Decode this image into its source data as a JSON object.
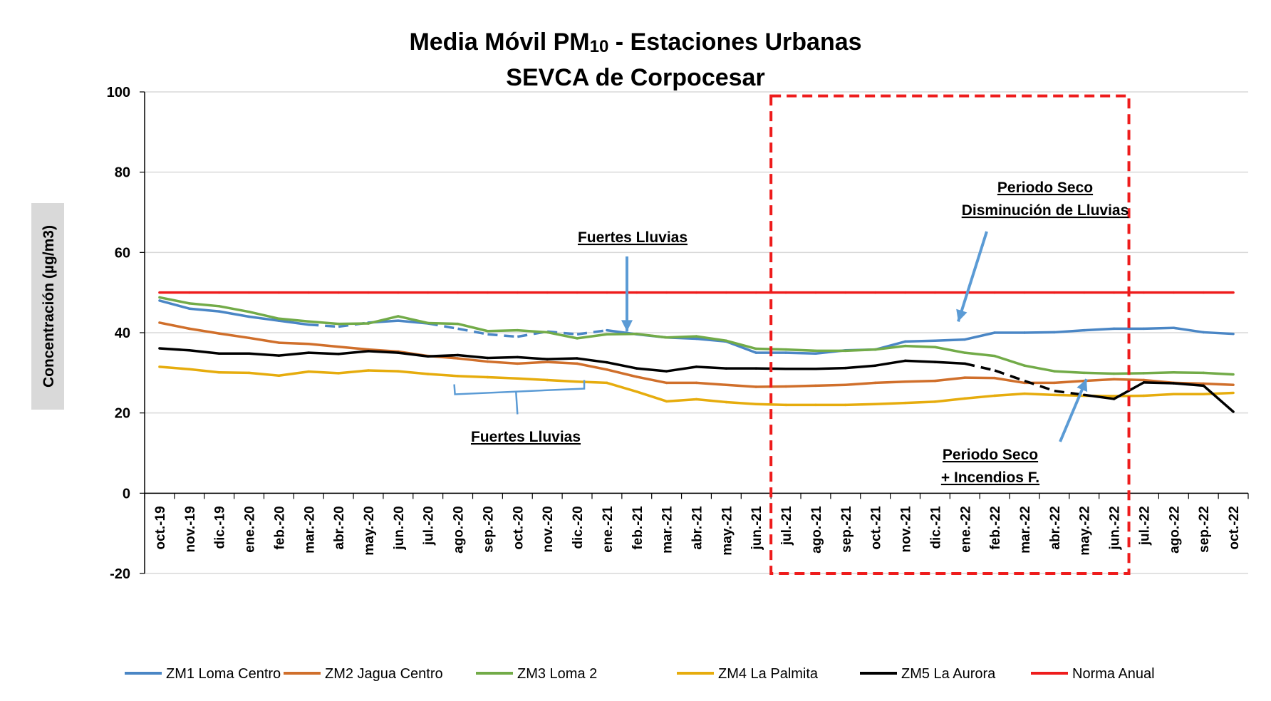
{
  "chart_data": {
    "type": "line",
    "title": "Media Móvil PM10 - Estaciones Urbanas",
    "title_line1_prefix": "Media Móvil PM",
    "title_line1_sub": "10",
    "title_line1_suffix": " - Estaciones Urbanas",
    "subtitle": "SEVCA de Corpocesar",
    "ylabel": "Concentración (µg/m3)",
    "xlabel": "",
    "ylim": [
      -20,
      100
    ],
    "yticks": [
      -20,
      0,
      20,
      40,
      60,
      80,
      100
    ],
    "grid": "horizontal",
    "legend_position": "bottom",
    "categories": [
      "oct.-19",
      "nov.-19",
      "dic.-19",
      "ene.-20",
      "feb.-20",
      "mar.-20",
      "abr.-20",
      "may.-20",
      "jun.-20",
      "jul.-20",
      "ago.-20",
      "sep.-20",
      "oct.-20",
      "nov.-20",
      "dic.-20",
      "ene.-21",
      "feb.-21",
      "mar.-21",
      "abr.-21",
      "may.-21",
      "jun.-21",
      "jul.-21",
      "ago.-21",
      "sep.-21",
      "oct.-21",
      "nov.-21",
      "dic.-21",
      "ene.-22",
      "feb.-22",
      "mar.-22",
      "abr.-22",
      "may.-22",
      "jun.-22",
      "jul.-22",
      "ago.-22",
      "sep.-22",
      "oct.-22"
    ],
    "series": [
      {
        "name": "ZM1  Loma Centro",
        "color": "#4a86c5",
        "values": [
          48,
          46,
          45.3,
          44,
          43,
          42,
          41.5,
          42.5,
          43,
          42.3,
          41,
          39.6,
          39,
          40.3,
          39.6,
          40.6,
          39.6,
          38.8,
          38.5,
          37.8,
          35,
          35,
          34.8,
          35.6,
          35.8,
          37.8,
          38,
          38.3,
          40,
          40,
          40.1,
          40.6,
          41,
          41,
          41.2,
          40.1,
          39.7
        ],
        "dashed_segments": [
          [
            5,
            7
          ],
          [
            9,
            15
          ]
        ]
      },
      {
        "name": "ZM2  Jagua Centro",
        "color": "#d06f2b",
        "values": [
          42.5,
          41,
          39.8,
          38.7,
          37.5,
          37.2,
          36.5,
          35.8,
          35.3,
          34.2,
          33.6,
          32.8,
          32.3,
          32.7,
          32.3,
          30.8,
          29,
          27.5,
          27.5,
          27,
          26.5,
          26.6,
          26.8,
          27,
          27.5,
          27.8,
          28,
          28.8,
          28.7,
          27.5,
          27.5,
          28,
          28.4,
          28.2,
          27.5,
          27.3,
          27
        ],
        "dashed_segments": []
      },
      {
        "name": "ZM3  Loma 2",
        "color": "#72ab48",
        "values": [
          48.8,
          47.3,
          46.6,
          45.2,
          43.5,
          42.8,
          42.2,
          42.3,
          44.1,
          42.4,
          42.2,
          40.4,
          40.6,
          40.1,
          38.6,
          39.6,
          39.7,
          38.8,
          39.1,
          38,
          36,
          35.8,
          35.5,
          35.5,
          35.8,
          36.7,
          36.4,
          35,
          34.2,
          31.8,
          30.4,
          30,
          29.8,
          29.9,
          30.1,
          30,
          29.6
        ],
        "dashed_segments": []
      },
      {
        "name": "ZM4  La Palmita",
        "color": "#e6ac0d",
        "values": [
          31.5,
          30.9,
          30.1,
          30,
          29.3,
          30.3,
          29.9,
          30.6,
          30.4,
          29.7,
          29.2,
          28.9,
          28.6,
          28.2,
          27.8,
          27.5,
          25.3,
          22.9,
          23.4,
          22.7,
          22.2,
          22,
          22,
          22,
          22.2,
          22.5,
          22.8,
          23.6,
          24.3,
          24.8,
          24.5,
          24.3,
          24.2,
          24.3,
          24.7,
          24.7,
          25
        ],
        "dashed_segments": []
      },
      {
        "name": "ZM5  La Aurora",
        "color": "#000000",
        "values": [
          36.1,
          35.6,
          34.8,
          34.8,
          34.3,
          35,
          34.7,
          35.4,
          35,
          34.1,
          34.4,
          33.7,
          33.9,
          33.4,
          33.6,
          32.6,
          31.1,
          30.4,
          31.5,
          31.1,
          31.1,
          31,
          31,
          31.2,
          31.8,
          33,
          32.7,
          32.3,
          30.6,
          28,
          25.5,
          24.5,
          23.5,
          27.6,
          27.4,
          26.8,
          20.3
        ],
        "dashed_segments": [
          [
            27,
            31
          ]
        ]
      },
      {
        "name": "Norma Anual",
        "color": "#ee1c1c",
        "values": [
          50,
          50,
          50,
          50,
          50,
          50,
          50,
          50,
          50,
          50,
          50,
          50,
          50,
          50,
          50,
          50,
          50,
          50,
          50,
          50,
          50,
          50,
          50,
          50,
          50,
          50,
          50,
          50,
          50,
          50,
          50,
          50,
          50,
          50,
          50,
          50,
          50
        ],
        "dashed_segments": []
      }
    ],
    "highlight_box": {
      "from_category": "jul.-21",
      "to_category": "jun.-22",
      "y_from": -20,
      "y_to": 99,
      "color": "#ee1c1c"
    },
    "annotations": [
      {
        "lines": [
          "Fuertes Lluvias"
        ],
        "arrow_to": {
          "category_index": 16,
          "value": 41
        },
        "color": "#5b9bd5"
      },
      {
        "lines": [
          "Fuertes Lluvias"
        ],
        "bracket": {
          "from_category_index": 10,
          "to_category_index": 14,
          "value": 25
        },
        "color": "#5b9bd5"
      },
      {
        "lines": [
          "Periodo Seco",
          "Disminución de Lluvias"
        ],
        "arrow_to": {
          "category_index": 26,
          "value": 41
        },
        "color": "#5b9bd5"
      },
      {
        "lines": [
          "Periodo Seco",
          "+ Incendios F."
        ],
        "arrow_to": {
          "category_index": 29.5,
          "value": 27
        },
        "color": "#5b9bd5"
      }
    ]
  }
}
